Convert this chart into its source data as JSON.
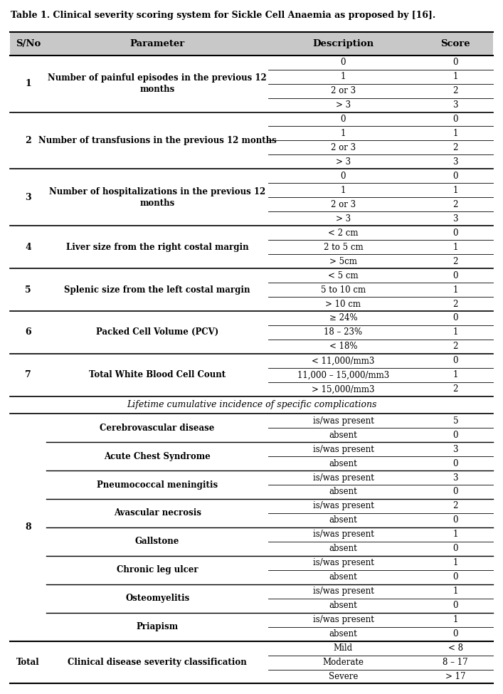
{
  "title": "Table 1. Clinical severity scoring system for Sickle Cell Anaemia as proposed by [16].",
  "header_bg": "#c8c8c8",
  "fig_width": 7.07,
  "fig_height": 9.75,
  "rows": [
    {
      "sno": "1",
      "param": "Number of painful episodes in the previous 12\nmonths",
      "sub_rows": [
        {
          "desc": "0",
          "score": "0"
        },
        {
          "desc": "1",
          "score": "1"
        },
        {
          "desc": "2 or 3",
          "score": "2"
        },
        {
          "desc": "> 3",
          "score": "3"
        }
      ]
    },
    {
      "sno": "2",
      "param": "Number of transfusions in the previous 12 months",
      "sub_rows": [
        {
          "desc": "0",
          "score": "0"
        },
        {
          "desc": "1",
          "score": "1"
        },
        {
          "desc": "2 or 3",
          "score": "2"
        },
        {
          "desc": "> 3",
          "score": "3"
        }
      ]
    },
    {
      "sno": "3",
      "param": "Number of hospitalizations in the previous 12\nmonths",
      "sub_rows": [
        {
          "desc": "0",
          "score": "0"
        },
        {
          "desc": "1",
          "score": "1"
        },
        {
          "desc": "2 or 3",
          "score": "2"
        },
        {
          "desc": "> 3",
          "score": "3"
        }
      ]
    },
    {
      "sno": "4",
      "param": "Liver size from the right costal margin",
      "sub_rows": [
        {
          "desc": "< 2 cm",
          "score": "0"
        },
        {
          "desc": "2 to 5 cm",
          "score": "1"
        },
        {
          "desc": "> 5cm",
          "score": "2"
        }
      ]
    },
    {
      "sno": "5",
      "param": "Splenic size from the left costal margin",
      "sub_rows": [
        {
          "desc": "< 5 cm",
          "score": "0"
        },
        {
          "desc": "5 to 10 cm",
          "score": "1"
        },
        {
          "desc": "> 10 cm",
          "score": "2"
        }
      ]
    },
    {
      "sno": "6",
      "param": "Packed Cell Volume (PCV)",
      "sub_rows": [
        {
          "desc": "≥ 24%",
          "score": "0"
        },
        {
          "desc": "18 – 23%",
          "score": "1"
        },
        {
          "desc": "< 18%",
          "score": "2"
        }
      ]
    },
    {
      "sno": "7",
      "param": "Total White Blood Cell Count",
      "sub_rows": [
        {
          "desc": "< 11,000/mm3",
          "score": "0"
        },
        {
          "desc": "11,000 – 15,000/mm3",
          "score": "1"
        },
        {
          "desc": "> 15,000/mm3",
          "score": "2"
        }
      ]
    }
  ],
  "section8_header": "Lifetime cumulative incidence of specific complications",
  "section8_sno": "8",
  "section8_complications": [
    {
      "name": "Cerebrovascular disease",
      "present_score": "5"
    },
    {
      "name": "Acute Chest Syndrome",
      "present_score": "3"
    },
    {
      "name": "Pneumococcal meningitis",
      "present_score": "3"
    },
    {
      "name": "Avascular necrosis",
      "present_score": "2"
    },
    {
      "name": "Gallstone",
      "present_score": "1"
    },
    {
      "name": "Chronic leg ulcer",
      "present_score": "1"
    },
    {
      "name": "Osteomyelitis",
      "present_score": "1"
    },
    {
      "name": "Priapism",
      "present_score": "1"
    }
  ],
  "total_row": {
    "sno": "Total",
    "param": "Clinical disease severity classification",
    "sub_rows": [
      {
        "desc": "Mild",
        "score": "< 8"
      },
      {
        "desc": "Moderate",
        "score": "8 – 17"
      },
      {
        "desc": "Severe",
        "score": "> 17"
      }
    ]
  }
}
